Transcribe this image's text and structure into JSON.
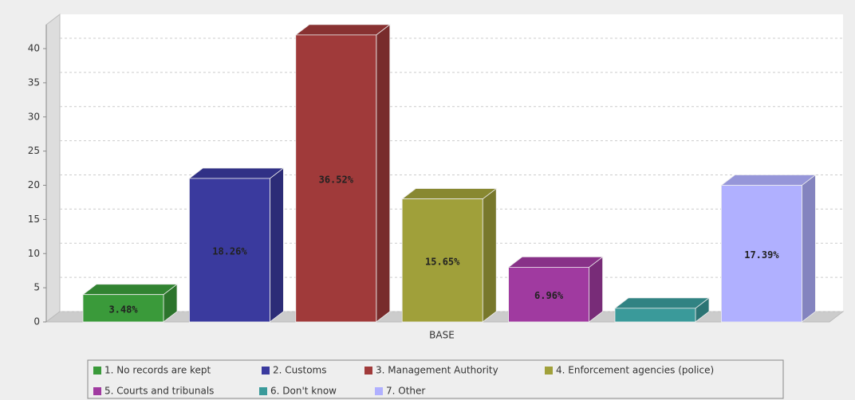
{
  "chart_data": {
    "type": "bar3d",
    "categories": [
      "BASE"
    ],
    "series": [
      {
        "name": "1. No records are kept",
        "color": "#3a9a3a",
        "values": [
          4
        ]
      },
      {
        "name": "2. Customs",
        "color": "#3a3a9e",
        "values": [
          21
        ]
      },
      {
        "name": "3. Management Authority",
        "color": "#a03a3a",
        "values": [
          42
        ]
      },
      {
        "name": "4. Enforcement agencies (police)",
        "color": "#a0a03a",
        "values": [
          18
        ]
      },
      {
        "name": "5. Courts and tribunals",
        "color": "#a03aa0",
        "values": [
          8
        ]
      },
      {
        "name": "6. Don't know",
        "color": "#3a9a9a",
        "values": [
          2
        ]
      },
      {
        "name": "7. Other",
        "color": "#b0b0ff",
        "values": [
          20
        ]
      }
    ],
    "percent_labels": [
      "3.48%",
      "18.26%",
      "36.52%",
      "15.65%",
      "6.96%",
      null,
      "17.39%"
    ],
    "ylim": [
      0,
      43.5
    ],
    "yticks": [
      0,
      5,
      10,
      15,
      20,
      25,
      30,
      35,
      40
    ],
    "grid": true,
    "legend": "bottom"
  }
}
